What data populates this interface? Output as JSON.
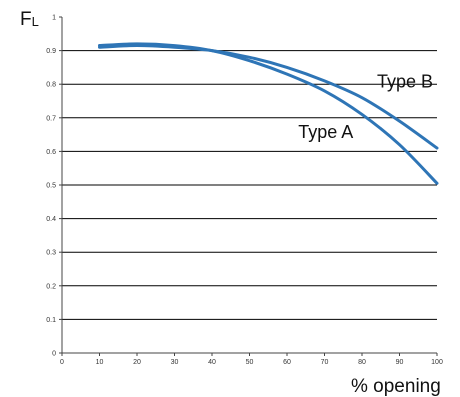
{
  "chart_data": {
    "type": "line",
    "title": "",
    "xlabel": "% opening",
    "ylabel": "FL",
    "xlim": [
      0,
      100
    ],
    "ylim": [
      0,
      1
    ],
    "x_ticks": [
      "0",
      "10",
      "20",
      "30",
      "40",
      "50",
      "60",
      "70",
      "80",
      "90",
      "100"
    ],
    "y_ticks": [
      "0",
      "0.1",
      "0.2",
      "0.3",
      "0.4",
      "0.5",
      "0.6",
      "0.7",
      "0.8",
      "0.9",
      "1"
    ],
    "grid": "horizontal",
    "series": [
      {
        "name": "Type A",
        "x": [
          10,
          20,
          30,
          40,
          50,
          60,
          70,
          80,
          90,
          100
        ],
        "y": [
          0.915,
          0.92,
          0.915,
          0.9,
          0.87,
          0.83,
          0.78,
          0.71,
          0.62,
          0.505
        ]
      },
      {
        "name": "Type B",
        "x": [
          10,
          20,
          30,
          40,
          50,
          60,
          70,
          80,
          90,
          100
        ],
        "y": [
          0.91,
          0.915,
          0.91,
          0.9,
          0.88,
          0.85,
          0.81,
          0.76,
          0.69,
          0.61
        ]
      }
    ],
    "annotations": [
      {
        "text": "Type A",
        "x": 63,
        "y": 0.64
      },
      {
        "text": "Type B",
        "x": 84,
        "y": 0.79
      }
    ],
    "line_color": "#2E75B6"
  }
}
